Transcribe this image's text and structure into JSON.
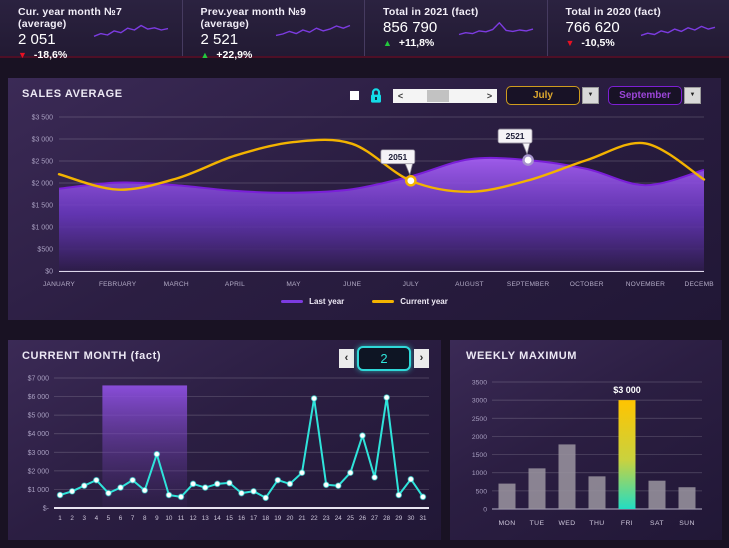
{
  "kpi_cards": [
    {
      "label": "Cur. year month №7 (average)",
      "value": "2 051",
      "delta": "-18,6%",
      "direction": "down",
      "trend_icon": "▼",
      "trend_color": "#e81123",
      "sparkline": [
        0.15,
        0.3,
        0.22,
        0.45,
        0.35,
        0.6,
        0.5,
        0.75,
        0.55,
        0.62,
        0.5,
        0.58
      ]
    },
    {
      "label": "Prev.year month №9 (average)",
      "value": "2 521",
      "delta": "+22,9%",
      "direction": "up",
      "trend_icon": "▲",
      "trend_color": "#23c93d",
      "sparkline": [
        0.2,
        0.28,
        0.42,
        0.3,
        0.5,
        0.38,
        0.6,
        0.45,
        0.55,
        0.72,
        0.6,
        0.75
      ]
    },
    {
      "label": "Total in 2021 (fact)",
      "value": "856 790",
      "delta": "+11,8%",
      "direction": "up",
      "trend_icon": "▲",
      "trend_color": "#23c93d",
      "sparkline": [
        0.25,
        0.35,
        0.3,
        0.45,
        0.4,
        0.52,
        0.9,
        0.48,
        0.42,
        0.5,
        0.45,
        0.55
      ]
    },
    {
      "label": "Total in 2020 (fact)",
      "value": "766 620",
      "delta": "-10,5%",
      "direction": "down",
      "trend_icon": "▼",
      "trend_color": "#e81123",
      "sparkline": [
        0.2,
        0.32,
        0.25,
        0.45,
        0.35,
        0.55,
        0.42,
        0.62,
        0.5,
        0.7,
        0.55,
        0.65
      ]
    }
  ],
  "sales_average": {
    "title": "SALES AVERAGE",
    "controls": {
      "checkbox_checked": false,
      "scrollbar": {
        "left_arrow": "<",
        "right_arrow": ">"
      },
      "dropdown_icon": "▼",
      "month_from": {
        "value": "July",
        "accent": "#d8a62c"
      },
      "month_to": {
        "value": "September",
        "accent": "#9b45d8"
      }
    }
  },
  "current_month": {
    "title": "CURRENT MONTH (fact)",
    "nav": {
      "prev": "‹",
      "value": "2",
      "next": "›"
    }
  },
  "weekly_maximum": {
    "title": "WEEKLY MAXIMUM"
  },
  "chart_data": [
    {
      "type": "area-line",
      "title": "SALES AVERAGE",
      "categories": [
        "JANUARY",
        "FEBRUARY",
        "MARCH",
        "APRIL",
        "MAY",
        "JUNE",
        "JULY",
        "AUGUST",
        "SEPTEMBER",
        "OCTOBER",
        "NOVEMBER",
        "DECEMBER"
      ],
      "series": [
        {
          "name": "Last year",
          "render": "area",
          "color": "#7c3be0",
          "stroke": "#7a1fd8",
          "values": [
            1870,
            2010,
            1950,
            1820,
            1780,
            1860,
            2150,
            2540,
            2521,
            2320,
            1950,
            2300
          ]
        },
        {
          "name": "Current year",
          "render": "line",
          "color": "#f3b300",
          "stroke": "#f3b300",
          "values": [
            2200,
            1850,
            2100,
            2620,
            2930,
            2890,
            2051,
            1800,
            2060,
            2520,
            2900,
            2080
          ]
        }
      ],
      "ylim": [
        0,
        3500
      ],
      "yticks": [
        "$3 500",
        "$3 000",
        "$2 500",
        "$2 000",
        "$1 500",
        "$1 000",
        "$500",
        "$0"
      ],
      "grid": true,
      "legend_position": "bottom",
      "annotations": [
        {
          "label": "2051",
          "series": 1,
          "index": 6
        },
        {
          "label": "2521",
          "series": 0,
          "index": 8
        }
      ]
    },
    {
      "type": "line",
      "title": "CURRENT MONTH (fact)",
      "categories": [
        "1",
        "2",
        "3",
        "4",
        "5",
        "6",
        "7",
        "8",
        "9",
        "10",
        "11",
        "12",
        "13",
        "14",
        "15",
        "16",
        "17",
        "18",
        "19",
        "20",
        "21",
        "22",
        "23",
        "24",
        "25",
        "26",
        "27",
        "28",
        "29",
        "30",
        "31"
      ],
      "values": [
        700,
        900,
        1200,
        1500,
        800,
        1100,
        1500,
        950,
        2900,
        700,
        600,
        1300,
        1100,
        1300,
        1350,
        800,
        900,
        550,
        1500,
        1300,
        1900,
        5900,
        1250,
        1200,
        1900,
        3900,
        1650,
        5950,
        700,
        1550,
        600
      ],
      "line_color": "#2fe3da",
      "marker_color": "#ffffff",
      "ylim": [
        0,
        7000
      ],
      "yticks": [
        "$7 000",
        "$6 000",
        "$5 000",
        "$4 000",
        "$3 000",
        "$2 000",
        "$1 000",
        "$-"
      ],
      "grid": true,
      "highlight": {
        "days_from": 5,
        "days_to": 11,
        "top_value": 6600,
        "color_top": "#8d4fe0",
        "color_bottom": "#51317e"
      }
    },
    {
      "type": "bar",
      "title": "WEEKLY MAXIMUM",
      "categories": [
        "MON",
        "TUE",
        "WED",
        "THU",
        "FRI",
        "SAT",
        "SUN"
      ],
      "values": [
        700,
        1120,
        1780,
        900,
        3000,
        780,
        600
      ],
      "bar_color": "#97929d",
      "highlight_index": 4,
      "highlight_label": "$3 000",
      "highlight_gradient": [
        "#ffc400",
        "#c9d23f",
        "#23dcc3"
      ],
      "ylim": [
        0,
        3500
      ],
      "yticks": [
        "3500",
        "3000",
        "2500",
        "2000",
        "1500",
        "1000",
        "500",
        "0"
      ],
      "grid": true
    }
  ]
}
